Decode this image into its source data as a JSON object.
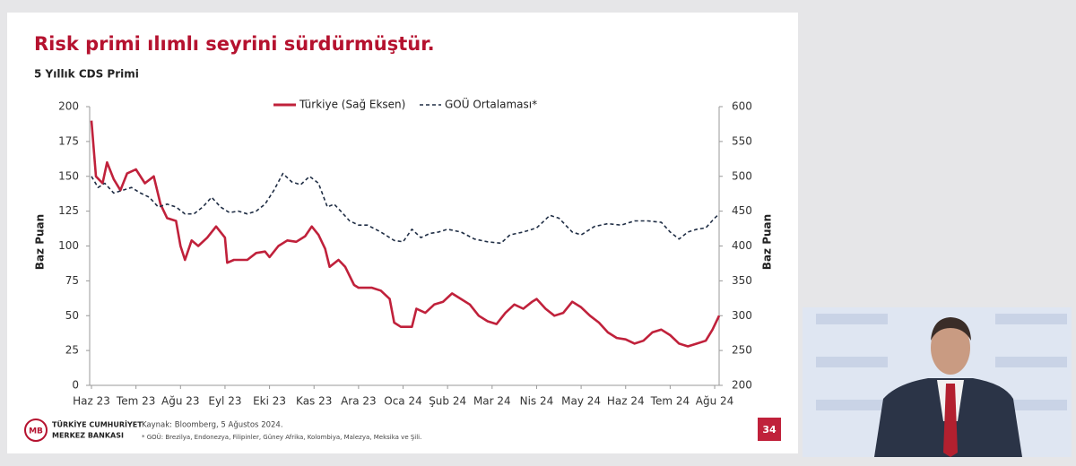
{
  "chart_data": {
    "type": "line",
    "title": "Risk primi ılımlı seyrini sürdürmüştür.",
    "subtitle": "5 Yıllık CDS Primi",
    "y_label": "Baz Puan",
    "y2_label": "Baz Puan",
    "xlim": [
      0,
      14.1
    ],
    "xticks": [
      {
        "value": 0,
        "label": "Haz 23"
      },
      {
        "value": 1,
        "label": "Tem 23"
      },
      {
        "value": 2,
        "label": "Ağu 23"
      },
      {
        "value": 3,
        "label": "Eyl 23"
      },
      {
        "value": 4,
        "label": "Eki 23"
      },
      {
        "value": 5,
        "label": "Kas 23"
      },
      {
        "value": 6,
        "label": "Ara 23"
      },
      {
        "value": 7,
        "label": "Oca 24"
      },
      {
        "value": 8,
        "label": "Şub 24"
      },
      {
        "value": 9,
        "label": "Mar 24"
      },
      {
        "value": 10,
        "label": "Nis 24"
      },
      {
        "value": 11,
        "label": "May 24"
      },
      {
        "value": 12,
        "label": "Haz 24"
      },
      {
        "value": 13,
        "label": "Tem 24"
      },
      {
        "value": 14,
        "label": "Ağu 24"
      }
    ],
    "ylim": [
      0,
      200
    ],
    "yticks": [
      0,
      25,
      50,
      75,
      100,
      125,
      150,
      175,
      200
    ],
    "y2lim": [
      200,
      600
    ],
    "y2ticks": [
      200,
      250,
      300,
      350,
      400,
      450,
      500,
      550,
      600
    ],
    "series": [
      {
        "name": "Türkiye (Sağ Eksen)",
        "color": "#c0213b",
        "style": "solid",
        "axis": "y2",
        "x": [
          0,
          0.1,
          0.25,
          0.35,
          0.5,
          0.65,
          0.8,
          1.0,
          1.2,
          1.4,
          1.55,
          1.7,
          1.9,
          2.0,
          2.1,
          2.25,
          2.4,
          2.6,
          2.8,
          3.0,
          3.05,
          3.2,
          3.5,
          3.7,
          3.9,
          4.0,
          4.2,
          4.4,
          4.6,
          4.8,
          4.95,
          5.1,
          5.25,
          5.35,
          5.55,
          5.7,
          5.9,
          6.0,
          6.3,
          6.5,
          6.7,
          6.8,
          6.95,
          7.2,
          7.3,
          7.5,
          7.7,
          7.9,
          8.1,
          8.3,
          8.5,
          8.7,
          8.9,
          9.1,
          9.3,
          9.5,
          9.7,
          9.9,
          10.0,
          10.2,
          10.4,
          10.6,
          10.8,
          11.0,
          11.2,
          11.4,
          11.6,
          11.8,
          12.0,
          12.2,
          12.4,
          12.6,
          12.8,
          13.0,
          13.2,
          13.4,
          13.6,
          13.8,
          13.95,
          14.1
        ],
        "values": [
          580,
          500,
          490,
          520,
          496,
          480,
          504,
          510,
          490,
          500,
          460,
          440,
          436,
          400,
          380,
          408,
          400,
          412,
          428,
          412,
          376,
          380,
          380,
          390,
          392,
          384,
          400,
          408,
          406,
          414,
          428,
          416,
          396,
          370,
          380,
          370,
          344,
          340,
          340,
          336,
          324,
          290,
          284,
          284,
          310,
          304,
          316,
          320,
          332,
          324,
          316,
          300,
          292,
          288,
          304,
          316,
          310,
          320,
          324,
          310,
          300,
          304,
          320,
          312,
          300,
          290,
          276,
          268,
          266,
          260,
          264,
          276,
          280,
          272,
          260,
          256,
          260,
          264,
          280,
          300
        ]
      },
      {
        "name": "GOÜ Ortalaması*",
        "color": "#1f2d44",
        "style": "dashed",
        "axis": "y",
        "x": [
          0,
          0.15,
          0.3,
          0.5,
          0.7,
          0.9,
          1.1,
          1.3,
          1.5,
          1.7,
          1.9,
          2.1,
          2.3,
          2.5,
          2.7,
          2.9,
          3.1,
          3.3,
          3.5,
          3.7,
          3.9,
          4.1,
          4.3,
          4.5,
          4.7,
          4.9,
          5.1,
          5.3,
          5.45,
          5.6,
          5.8,
          6.0,
          6.2,
          6.5,
          6.8,
          7.0,
          7.2,
          7.4,
          7.6,
          7.8,
          8.0,
          8.3,
          8.6,
          8.9,
          9.2,
          9.4,
          9.7,
          10.0,
          10.3,
          10.5,
          10.8,
          11.0,
          11.3,
          11.6,
          11.9,
          12.2,
          12.5,
          12.8,
          13.0,
          13.2,
          13.4,
          13.6,
          13.8,
          14.0,
          14.1
        ],
        "values": [
          150,
          142,
          145,
          138,
          140,
          142,
          138,
          135,
          128,
          130,
          128,
          123,
          123,
          128,
          135,
          128,
          124,
          125,
          123,
          125,
          130,
          140,
          152,
          146,
          144,
          150,
          145,
          128,
          130,
          125,
          118,
          115,
          115,
          110,
          104,
          103,
          112,
          106,
          109,
          110,
          112,
          110,
          105,
          103,
          102,
          108,
          110,
          113,
          122,
          120,
          110,
          108,
          114,
          116,
          115,
          118,
          118,
          117,
          110,
          105,
          110,
          112,
          113,
          120,
          123
        ]
      }
    ]
  },
  "slide": {
    "bank_line1": "TÜRKİYE CUMHURİYET",
    "bank_line2": "MERKEZ BANKASI",
    "source": "Kaynak: Bloomberg, 5 Ağustos 2024.",
    "note": "* GOÜ: Brezilya, Endonezya, Filipinler, Güney Afrika, Kolombiya, Malezya, Meksika ve Şili.",
    "page_number": "34"
  }
}
